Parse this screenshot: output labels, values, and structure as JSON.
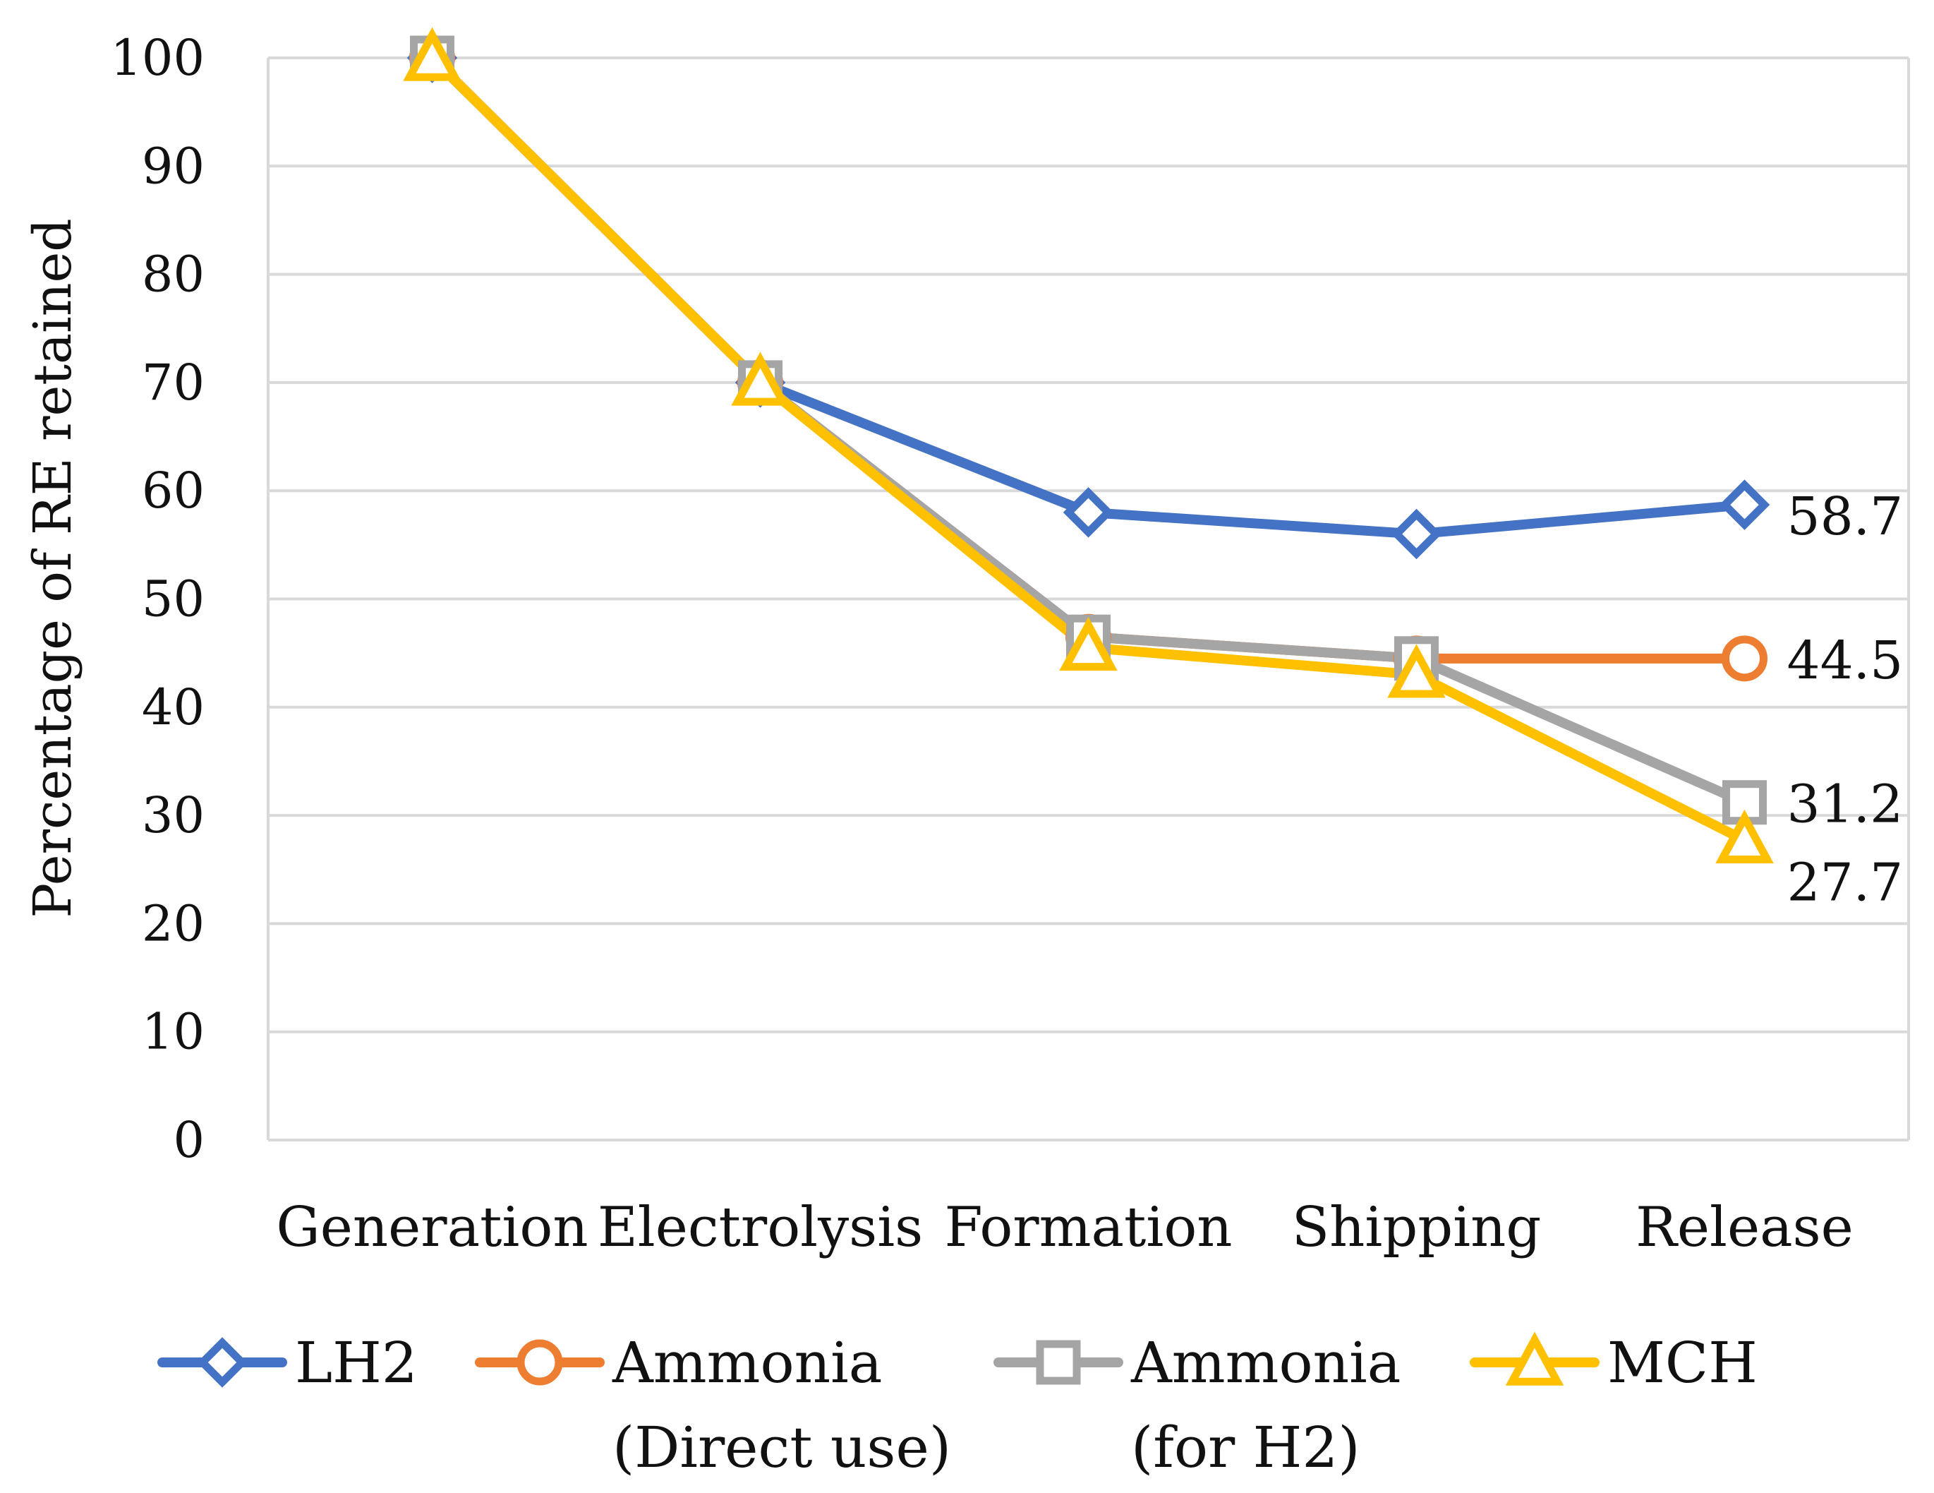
{
  "chart_data": {
    "type": "line",
    "ylabel": "Percentage of RE retained",
    "xlabel": "",
    "ylim": [
      0,
      100
    ],
    "yticks": [
      0,
      10,
      20,
      30,
      40,
      50,
      60,
      70,
      80,
      90,
      100
    ],
    "grid": true,
    "legend_position": "bottom",
    "categories": [
      "Generation",
      "Electrolysis",
      "Formation",
      "Shipping",
      "Release"
    ],
    "series": [
      {
        "name": "LH2",
        "name_lines": [
          "LH2"
        ],
        "color": "#4472C4",
        "marker": "diamond",
        "values": [
          100,
          70,
          58,
          56,
          58.7
        ],
        "end_label": "58.7"
      },
      {
        "name": "Ammonia (Direct use)",
        "name_lines": [
          "Ammonia",
          "(Direct use)"
        ],
        "color": "#ED7D31",
        "marker": "circle",
        "values": [
          100,
          70,
          46.5,
          44.5,
          44.5
        ],
        "end_label": "44.5"
      },
      {
        "name": "Ammonia (for H2)",
        "name_lines": [
          "Ammonia",
          "(for H2)"
        ],
        "color": "#A5A5A5",
        "marker": "square",
        "values": [
          100,
          70,
          46.5,
          44.5,
          31.2
        ],
        "end_label": "31.2"
      },
      {
        "name": "MCH",
        "name_lines": [
          "MCH"
        ],
        "color": "#FFC000",
        "marker": "triangle",
        "values": [
          100,
          70,
          45.5,
          43,
          27.7
        ],
        "end_label": "27.7"
      }
    ]
  }
}
